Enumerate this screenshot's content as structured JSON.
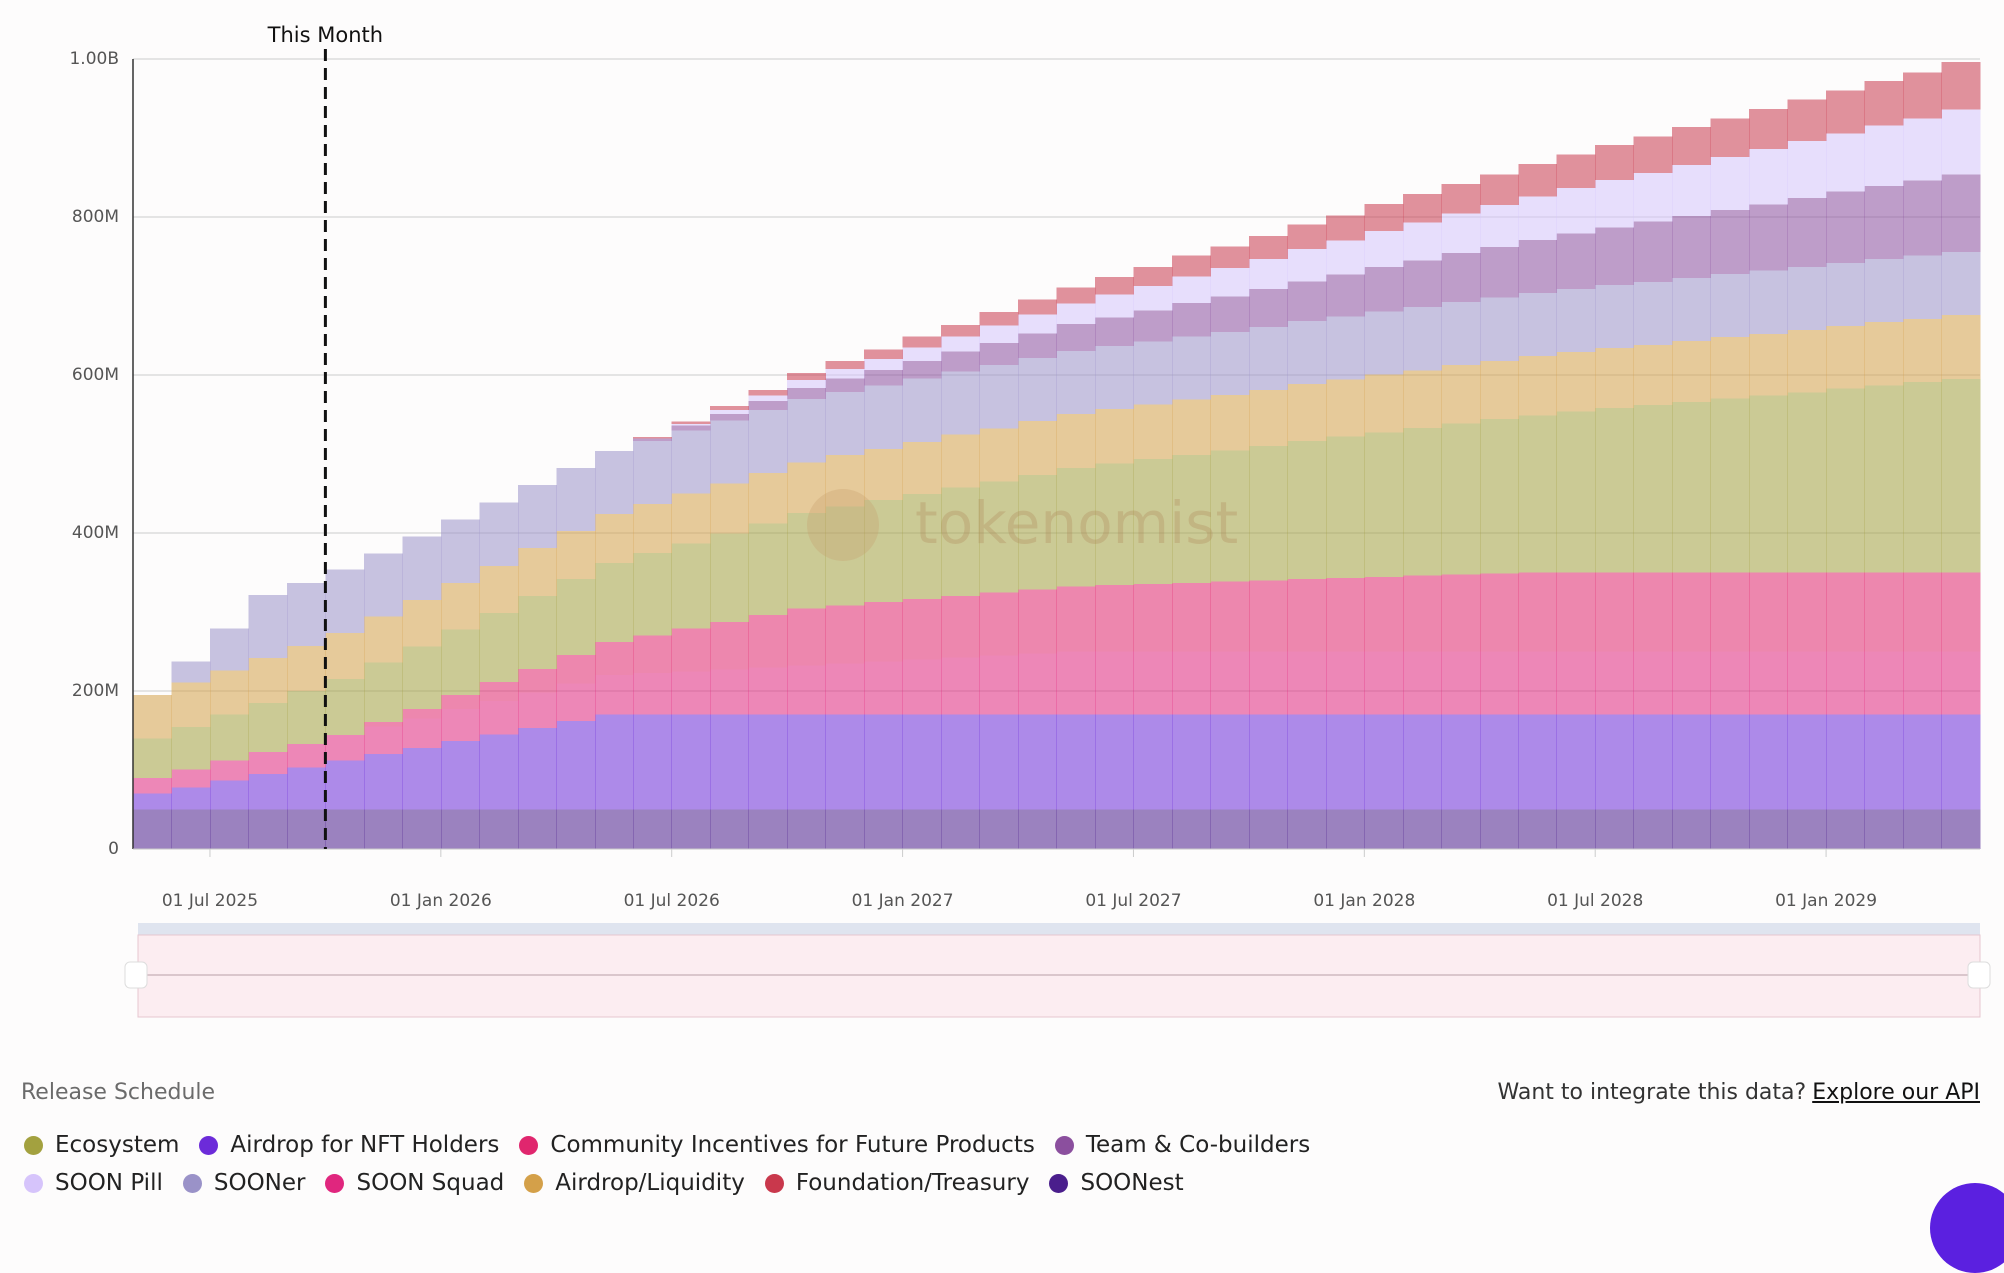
{
  "chart_data": {
    "type": "stacked-step-area",
    "xlim": [
      "2025-05-01",
      "2029-05-01"
    ],
    "xticks": [
      {
        "value": "2025-07-01",
        "label": "01 Jul 2025"
      },
      {
        "value": "2026-01-01",
        "label": "01 Jan 2026"
      },
      {
        "value": "2026-07-01",
        "label": "01 Jul 2026"
      },
      {
        "value": "2027-01-01",
        "label": "01 Jan 2027"
      },
      {
        "value": "2027-07-01",
        "label": "01 Jul 2027"
      },
      {
        "value": "2028-01-01",
        "label": "01 Jan 2028"
      },
      {
        "value": "2028-07-01",
        "label": "01 Jul 2028"
      },
      {
        "value": "2029-01-01",
        "label": "01 Jan 2029"
      }
    ],
    "ylim": [
      0,
      1000
    ],
    "yticks": [
      0,
      {
        "value": 200,
        "label": "200M"
      },
      {
        "value": 400,
        "label": "400M"
      },
      {
        "value": 600,
        "label": "600M"
      },
      {
        "value": 800,
        "label": "800M"
      },
      {
        "value": 1000,
        "label": "1.00B"
      }
    ],
    "grid": true,
    "annotation": {
      "x": "2025-10-01",
      "label": "This Month"
    },
    "watermark": "tokenomist",
    "x": [
      "2025-05-01",
      "2025-06-01",
      "2025-07-01",
      "2025-08-01",
      "2025-09-01",
      "2025-10-01",
      "2025-11-01",
      "2025-12-01",
      "2026-01-01",
      "2026-02-01",
      "2026-03-01",
      "2026-04-01",
      "2026-05-01",
      "2026-06-01",
      "2026-07-01",
      "2026-08-01",
      "2026-09-01",
      "2026-10-01",
      "2026-11-01",
      "2026-12-01",
      "2027-01-01",
      "2027-02-01",
      "2027-03-01",
      "2027-04-01",
      "2027-05-01",
      "2027-06-01",
      "2027-07-01",
      "2027-08-01",
      "2027-09-01",
      "2027-10-01",
      "2027-11-01",
      "2027-12-01",
      "2028-01-01",
      "2028-02-01",
      "2028-03-01",
      "2028-04-01",
      "2028-05-01",
      "2028-06-01",
      "2028-07-01",
      "2028-08-01",
      "2028-09-01",
      "2028-10-01",
      "2028-11-01",
      "2028-12-01",
      "2029-01-01",
      "2029-02-01",
      "2029-03-01",
      "2029-04-01"
    ],
    "series": [
      {
        "name": "Ecosystem",
        "color": "#a3a13f",
        "values": [
          50,
          54,
          58,
          62,
          67,
          71,
          75,
          79,
          83,
          87,
          92,
          96,
          100,
          104,
          108,
          112,
          116,
          121,
          125,
          129,
          133,
          137,
          141,
          145,
          150,
          154,
          158,
          162,
          166,
          170,
          175,
          179,
          183,
          187,
          191,
          195,
          199,
          204,
          208,
          212,
          216,
          220,
          224,
          228,
          233,
          237,
          241,
          245
        ]
      },
      {
        "name": "Airdrop for NFT Holders",
        "color": "#6c2bd9",
        "values": [
          20,
          28,
          37,
          45,
          53,
          62,
          70,
          78,
          87,
          95,
          103,
          112,
          120,
          120,
          120,
          120,
          120,
          120,
          120,
          120,
          120,
          120,
          120,
          120,
          120,
          120,
          120,
          120,
          120,
          120,
          120,
          120,
          120,
          120,
          120,
          120,
          120,
          120,
          120,
          120,
          120,
          120,
          120,
          120,
          120,
          120,
          120,
          120
        ]
      },
      {
        "name": "Community Incentives for Future Products",
        "color": "#e0266e",
        "values": [
          0,
          0,
          0,
          0,
          0,
          0,
          6,
          12,
          18,
          24,
          30,
          36,
          42,
          48,
          54,
          60,
          66,
          72,
          73.5,
          75,
          76.5,
          78,
          79.5,
          81,
          82.5,
          84,
          85.5,
          87,
          88.5,
          90,
          91.5,
          93,
          94.5,
          96,
          97.5,
          99,
          100,
          100,
          100,
          100,
          100,
          100,
          100,
          100,
          100,
          100,
          100,
          100
        ]
      },
      {
        "name": "Team & Co-builders",
        "color": "#8b4f9e",
        "values": [
          0,
          0,
          0,
          0,
          0,
          0,
          0,
          0,
          0,
          0,
          0,
          0,
          0,
          3,
          6,
          8,
          11,
          14,
          17,
          20,
          22,
          25,
          28,
          31,
          34,
          36,
          39,
          42,
          45,
          48,
          50,
          53,
          56,
          59,
          62,
          64,
          67,
          70,
          73,
          76,
          78,
          81,
          84,
          87,
          90,
          92,
          95,
          98
        ]
      },
      {
        "name": "SOON Pill",
        "color": "#d6c4fb",
        "values": [
          0,
          0,
          0,
          0,
          0,
          0,
          0,
          0,
          0,
          0,
          0,
          0,
          0,
          0,
          2,
          5,
          7,
          10,
          12,
          14,
          17,
          19,
          22,
          24,
          26,
          29,
          31,
          34,
          36,
          38,
          41,
          43,
          46,
          48,
          50,
          53,
          55,
          58,
          60,
          62,
          65,
          67,
          70,
          72,
          74,
          77,
          79,
          82
        ]
      },
      {
        "name": "SOONer",
        "color": "#9a92c8",
        "values": [
          0,
          27,
          53,
          80,
          80,
          80,
          80,
          80,
          80,
          80,
          80,
          80,
          80,
          80,
          80,
          80,
          80,
          80,
          80,
          80,
          80,
          80,
          80,
          80,
          80,
          80,
          80,
          80,
          80,
          80,
          80,
          80,
          80,
          80,
          80,
          80,
          80,
          80,
          80,
          80,
          80,
          80,
          80,
          80,
          80,
          80,
          80,
          80
        ]
      },
      {
        "name": "SOON Squad",
        "color": "#e0267e",
        "values": [
          20,
          22.5,
          25,
          27.5,
          30,
          32.5,
          35,
          37.5,
          40,
          42.5,
          45,
          47.5,
          50,
          52.5,
          55,
          57.5,
          60,
          62.5,
          65,
          67.5,
          70,
          72.5,
          75,
          77.5,
          80,
          80,
          80,
          80,
          80,
          80,
          80,
          80,
          80,
          80,
          80,
          80,
          80,
          80,
          80,
          80,
          80,
          80,
          80,
          80,
          80,
          80,
          80,
          80
        ]
      },
      {
        "name": "Airdrop/Liquidity",
        "color": "#d4a049",
        "values": [
          55,
          56,
          56,
          57,
          57,
          58,
          58,
          59,
          59,
          60,
          61,
          61,
          62,
          62,
          63,
          63,
          64,
          64,
          65,
          65,
          66,
          67,
          67,
          68,
          68,
          69,
          69,
          70,
          70,
          71,
          72,
          72,
          73,
          73,
          74,
          74,
          75,
          75,
          76,
          76,
          77,
          78,
          78,
          79,
          79,
          80,
          80,
          81
        ]
      },
      {
        "name": "Foundation/Treasury",
        "color": "#c9384c",
        "values": [
          0,
          0,
          0,
          0,
          0,
          0,
          0,
          0,
          0,
          0,
          0,
          0,
          0,
          2,
          3,
          5,
          7,
          9,
          10,
          12,
          14,
          15,
          17,
          19,
          20,
          22,
          24,
          26,
          27,
          29,
          31,
          32,
          34,
          36,
          37,
          39,
          41,
          42,
          44,
          46,
          48,
          49,
          51,
          53,
          54,
          56,
          58,
          60
        ]
      },
      {
        "name": "SOONest",
        "color": "#4a1e8c",
        "values": [
          50,
          50,
          50,
          50,
          50,
          50,
          50,
          50,
          50,
          50,
          50,
          50,
          50,
          50,
          50,
          50,
          50,
          50,
          50,
          50,
          50,
          50,
          50,
          50,
          50,
          50,
          50,
          50,
          50,
          50,
          50,
          50,
          50,
          50,
          50,
          50,
          50,
          50,
          50,
          50,
          50,
          50,
          50,
          50,
          50,
          50,
          50,
          50
        ]
      }
    ]
  },
  "page": {
    "section_title": "Release Schedule",
    "api_prompt": "Want to integrate this data?",
    "api_link": "Explore our API"
  }
}
